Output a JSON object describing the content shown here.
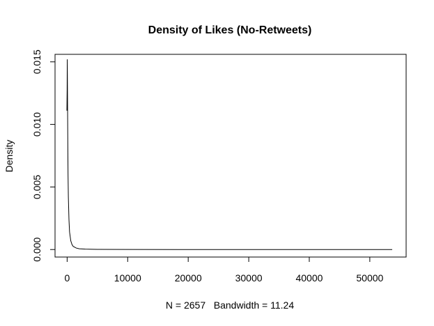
{
  "chart_data": {
    "type": "line",
    "title": "Density of Likes (No-Retweets)",
    "xlabel": "N = 2657   Bandwidth = 11.24",
    "ylabel": "Density",
    "xlim": [
      -2000,
      56000
    ],
    "ylim": [
      -0.0006,
      0.0156
    ],
    "x_ticks": [
      0,
      10000,
      20000,
      30000,
      40000,
      50000
    ],
    "x_tick_labels": [
      "0",
      "10000",
      "20000",
      "30000",
      "40000",
      "50000"
    ],
    "y_ticks": [
      0.0,
      0.005,
      0.01,
      0.015
    ],
    "y_tick_labels": [
      "0.000",
      "0.005",
      "0.010",
      "0.015"
    ],
    "grid": false,
    "legend": "none",
    "line_color": "#000000",
    "series": [
      {
        "x": [
          -40,
          0,
          20,
          40,
          60,
          80,
          100,
          120,
          150,
          200,
          300,
          400,
          600,
          800,
          1000,
          1500,
          2000,
          3000,
          5000,
          10000,
          20000,
          30000,
          40000,
          53700
        ],
        "y": [
          0.0111,
          0.0128,
          0.0152,
          0.0138,
          0.0124,
          0.0108,
          0.0092,
          0.0078,
          0.006,
          0.0042,
          0.0024,
          0.0014,
          0.0007,
          0.0004,
          0.00025,
          0.00012,
          6e-05,
          3e-05,
          1e-05,
          4e-06,
          1e-06,
          5e-07,
          3e-07,
          2e-07
        ]
      }
    ]
  }
}
